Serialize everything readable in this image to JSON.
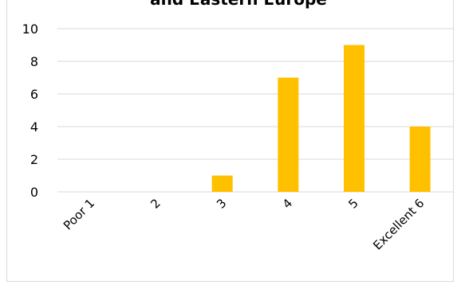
{
  "chart_data": {
    "type": "bar",
    "title": "and Eastern Europe",
    "categories": [
      "Poor 1",
      "2",
      "3",
      "4",
      "5",
      "Excellent 6"
    ],
    "series": [
      {
        "values": [
          0,
          0,
          1,
          7,
          9,
          4
        ]
      }
    ],
    "xlabel": "",
    "ylabel": "",
    "ylim": [
      0,
      10
    ],
    "yticks": [
      0,
      2,
      4,
      6,
      8,
      10
    ],
    "grid": true,
    "legend": "none",
    "bar_color": "#FFC000",
    "grid_color": "#d9d9d9"
  }
}
